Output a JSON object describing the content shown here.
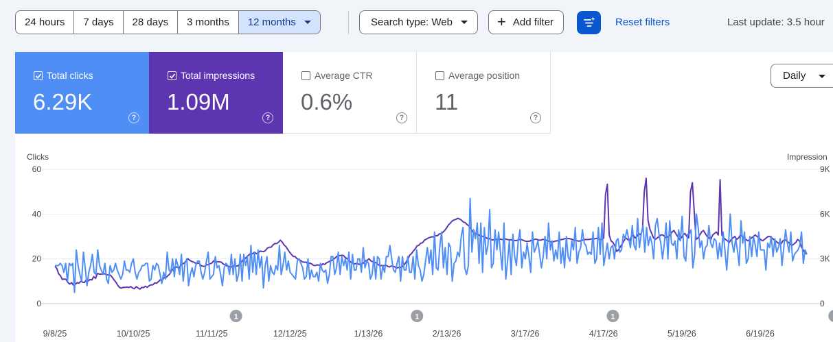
{
  "toolbar": {
    "ranges": [
      "24 hours",
      "7 days",
      "28 days",
      "3 months",
      "12 months"
    ],
    "selected_range": "12 months",
    "search_type": "Search type: Web",
    "add_filter": "Add filter",
    "reset_filters": "Reset filters",
    "last_update": "Last update: 3.5 hour"
  },
  "metrics": [
    {
      "label": "Total clicks",
      "value": "6.29K",
      "checked": true,
      "color": "#4e8ef5"
    },
    {
      "label": "Total impressions",
      "value": "1.09M",
      "checked": true,
      "color": "#5e35b1"
    },
    {
      "label": "Average CTR",
      "value": "0.6%",
      "checked": false
    },
    {
      "label": "Average position",
      "value": "11",
      "checked": false
    }
  ],
  "granularity": "Daily",
  "chart_data": {
    "type": "line",
    "left_axis_title": "Clicks",
    "right_axis_title": "Impression",
    "left_ticks": [
      "0",
      "20",
      "40",
      "60"
    ],
    "right_ticks": [
      "0",
      "3K",
      "6K",
      "9K"
    ],
    "ylim_left": [
      0,
      60
    ],
    "ylim_right": [
      0,
      9000
    ],
    "x_tick_labels": [
      "9/8/25",
      "10/10/25",
      "11/11/25",
      "12/12/25",
      "1/13/26",
      "2/13/26",
      "3/17/26",
      "4/17/26",
      "5/19/26",
      "6/19/26"
    ],
    "annotations": [
      "1",
      "1",
      "1",
      "1"
    ],
    "grid": true,
    "series": [
      {
        "name": "Clicks",
        "axis": "left",
        "color": "#4e8ef5",
        "values": [
          17,
          17,
          17,
          18,
          17,
          14,
          18,
          10,
          18,
          17,
          18,
          5,
          24,
          17,
          13,
          10,
          23,
          16,
          8,
          14,
          17,
          22,
          14,
          13,
          24,
          17,
          15,
          13,
          18,
          11,
          9,
          17,
          14,
          15,
          18,
          15,
          13,
          11,
          13,
          19,
          15,
          15,
          14,
          18,
          20,
          14,
          11,
          14,
          15,
          17,
          17,
          18,
          18,
          10,
          11,
          17,
          15,
          18,
          17,
          13,
          9,
          14,
          11,
          23,
          15,
          14,
          20,
          12,
          20,
          17,
          13,
          22,
          10,
          18,
          20,
          8,
          13,
          16,
          12,
          17,
          19,
          19,
          14,
          11,
          14,
          19,
          23,
          11,
          12,
          13,
          21,
          16,
          17,
          13,
          8,
          16,
          18,
          17,
          13,
          22,
          13,
          20,
          10,
          13,
          22,
          10,
          22,
          17,
          21,
          11,
          26,
          14,
          23,
          13,
          24,
          16,
          21,
          7,
          17,
          21,
          10,
          17,
          14,
          13,
          17,
          15,
          26,
          13,
          17,
          23,
          15,
          19,
          14,
          13,
          12,
          11,
          19,
          20,
          18,
          16,
          11,
          12,
          20,
          11,
          15,
          12,
          12,
          14,
          10,
          18,
          15,
          14,
          15,
          9,
          13,
          21,
          21,
          13,
          16,
          23,
          13,
          21,
          17,
          20,
          15,
          23,
          11,
          22,
          15,
          15,
          20,
          20,
          14,
          25,
          16,
          19,
          18,
          11,
          13,
          21,
          11,
          21,
          20,
          11,
          17,
          14,
          21,
          21,
          26,
          20,
          15,
          14,
          18,
          21,
          10,
          21,
          15,
          15,
          21,
          14,
          14,
          21,
          11,
          24,
          17,
          15,
          10,
          13,
          19,
          25,
          18,
          24,
          13,
          32,
          16,
          15,
          26,
          32,
          16,
          25,
          13,
          27,
          25,
          10,
          18,
          19,
          23,
          21,
          30,
          34,
          16,
          13,
          17,
          47,
          23,
          33,
          29,
          36,
          18,
          36,
          14,
          34,
          22,
          26,
          42,
          16,
          18,
          33,
          24,
          32,
          23,
          15,
          36,
          11,
          19,
          28,
          13,
          31,
          21,
          17,
          28,
          33,
          16,
          23,
          20,
          27,
          21,
          14,
          32,
          23,
          25,
          28,
          22,
          16,
          21,
          30,
          20,
          36,
          24,
          28,
          19,
          24,
          20,
          32,
          18,
          25,
          16,
          30,
          21,
          19,
          28,
          24,
          34,
          18,
          23,
          25,
          33,
          27,
          26,
          22,
          23,
          22,
          32,
          18,
          20,
          34,
          22,
          36,
          17,
          22,
          27,
          20,
          25,
          26,
          20,
          28,
          29,
          23,
          24,
          31,
          29,
          33,
          29,
          25,
          35,
          26,
          24,
          38,
          25,
          31,
          35,
          23,
          34,
          26,
          30,
          27,
          20,
          35,
          38,
          31,
          27,
          20,
          27,
          36,
          20,
          37,
          27,
          26,
          28,
          20,
          33,
          28,
          39,
          21,
          19,
          31,
          31,
          33,
          16,
          22,
          40,
          34,
          25,
          28,
          20,
          25,
          26,
          35,
          27,
          25,
          29,
          28,
          20,
          27,
          21,
          32,
          24,
          15,
          26,
          40,
          27,
          23,
          29,
          24,
          17,
          37,
          27,
          32,
          18,
          20,
          30,
          21,
          30,
          26,
          21,
          32,
          24,
          24,
          24,
          15,
          27,
          25,
          30,
          21,
          29,
          23,
          25,
          29,
          17,
          25,
          33,
          27,
          23,
          32,
          19,
          22,
          23,
          24,
          26,
          32,
          18,
          24,
          22
        ]
      },
      {
        "name": "Impressions",
        "axis": "right",
        "color": "#5e35b1",
        "values": [
          2499,
          2363,
          1997,
          1867,
          1617,
          1652,
          1622,
          1422,
          1307,
          1404,
          1239,
          1299,
          1405,
          1369,
          1501,
          1435,
          1421,
          1582,
          1516,
          1617,
          1590,
          1809,
          1688,
          2024,
          1976,
          1974,
          2002,
          1996,
          1939,
          1913,
          1912,
          1767,
          1587,
          1436,
          1227,
          1080,
          1036,
          1092,
          1085,
          1113,
          1079,
          1142,
          1049,
          1000,
          1141,
          1045,
          971,
          1084,
          1076,
          1165,
          1086,
          1202,
          1256,
          1257,
          1389,
          1363,
          1469,
          1596,
          1543,
          1731,
          1731,
          1850,
          1965,
          2163,
          2348,
          2449,
          2457,
          2366,
          2538,
          2647,
          2713,
          2880,
          3013,
          2895,
          2829,
          2787,
          2713,
          2700,
          2715,
          2551,
          2508,
          2494,
          2602,
          2602,
          2669,
          2727,
          2879,
          2767,
          2808,
          2799,
          2784,
          2661,
          2602,
          2532,
          2502,
          2418,
          2514,
          2546,
          2522,
          2520,
          2657,
          2799,
          2947,
          3022,
          3155,
          3264,
          3366,
          3337,
          3449,
          3347,
          3398,
          3516,
          3500,
          3486,
          3564,
          3719,
          3780,
          3773,
          3932,
          4027,
          4021,
          4110,
          4250,
          4125,
          3933,
          3820,
          3632,
          3442,
          3295,
          3159,
          3156,
          3012,
          2960,
          2895,
          2796,
          2772,
          2776,
          2657,
          2714,
          2653,
          2559,
          2555,
          2595,
          2578,
          2550,
          2671,
          2624,
          2736,
          2789,
          2865,
          2905,
          2987,
          3097,
          3211,
          3212,
          3232,
          3236,
          3108,
          3021,
          2959,
          2787,
          2713,
          2649,
          2684,
          2663,
          2619,
          2658,
          2721,
          2863,
          2898,
          3007,
          2865,
          2803,
          2785,
          2715,
          2612,
          2527,
          2564,
          2539,
          2576,
          2511,
          2455,
          2521,
          2508,
          2460,
          2381,
          2423,
          2414,
          2474,
          2588,
          2783,
          2989,
          3247,
          3352,
          3522,
          3665,
          3873,
          3912,
          4050,
          4082,
          4250,
          4322,
          4392,
          4441,
          4479,
          4461,
          4549,
          4546,
          4666,
          4690,
          4786,
          4908,
          5075,
          5273,
          5392,
          5531,
          5601,
          5645,
          5710,
          5673,
          5595,
          5469,
          5426,
          5302,
          5210,
          5052,
          4844,
          4709,
          4686,
          4643,
          4542,
          4533,
          4479,
          4439,
          4367,
          4365,
          4290,
          4270,
          4292,
          4303,
          4295,
          4326,
          4287,
          4316,
          4330,
          4290,
          4270,
          4286,
          4189,
          4227,
          4219,
          4288,
          4305,
          4268,
          4212,
          4174,
          4174,
          4187,
          4247,
          4281,
          4320,
          4300,
          4253,
          4254,
          4309,
          4268,
          4243,
          4203,
          4146,
          4134,
          4151,
          4195,
          4210,
          4256,
          4290,
          4313,
          4351,
          4355,
          4360,
          4340,
          4301,
          4246,
          4234,
          4197,
          4186,
          4237,
          4261,
          4298,
          4294,
          4300,
          4322,
          4355,
          4341,
          4373,
          4360,
          4304,
          4303,
          4385,
          7300,
          8000,
          4600,
          4200,
          4100,
          3900,
          3500,
          3600,
          3800,
          4000,
          4200,
          4400,
          4300,
          4200,
          4500,
          4600,
          4400,
          4500,
          4700,
          4600,
          5000,
          7500,
          8400,
          5600,
          5000,
          4700,
          4400,
          4300,
          4400,
          4500,
          4600,
          4600,
          4500,
          4400,
          4500,
          4600,
          4800,
          4900,
          4700,
          4500,
          4300,
          4400,
          4600,
          4700,
          4500,
          4400,
          7500,
          8100,
          6200,
          4300,
          4400,
          4600,
          4800,
          4900,
          4700,
          4500,
          4400,
          4300,
          4600,
          4700,
          4800,
          4600,
          8300,
          4600,
          4400,
          4300,
          4200,
          4100,
          4300,
          4400,
          4500,
          4300,
          4400,
          4600,
          4500,
          4400,
          4300,
          4200,
          4300,
          4400,
          4500,
          4600,
          4500,
          4400,
          4300,
          4200,
          4300,
          4400,
          4500,
          4500,
          4400,
          4300,
          4200,
          4100,
          4000,
          4000,
          4200,
          4300,
          4200,
          4100,
          4000,
          3900,
          4000,
          4100,
          4300,
          4200,
          3800,
          3600,
          3400,
          3300
        ]
      }
    ]
  }
}
